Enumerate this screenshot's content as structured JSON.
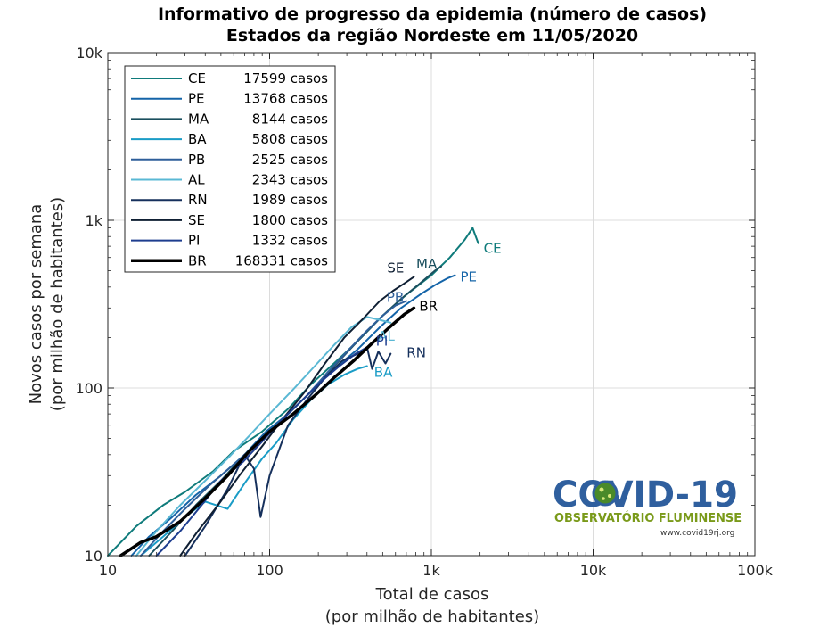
{
  "chart_data": {
    "type": "line",
    "title": [
      "Informativo de progresso da epidemia (número de casos)",
      "Estados da região Nordeste em 11/05/2020"
    ],
    "xlabel": [
      "Total de casos",
      "(por milhão de habitantes)"
    ],
    "ylabel": [
      "Novos casos por semana",
      "(por milhão de habitantes)"
    ],
    "xscale": "log",
    "yscale": "log",
    "xlim": [
      10,
      100000
    ],
    "ylim": [
      10,
      10000
    ],
    "xticks": [
      10,
      100,
      1000,
      10000,
      100000
    ],
    "xtick_labels": [
      "10",
      "100",
      "1k",
      "10k",
      "100k"
    ],
    "yticks": [
      10,
      100,
      1000,
      10000
    ],
    "ytick_labels": [
      "10",
      "100",
      "1k",
      "10k"
    ],
    "grid": true,
    "legend_position": "top-left",
    "series": [
      {
        "name": "CE",
        "cases": "17599 casos",
        "color": "#0f7b7b",
        "width": 2,
        "end_label_color": "#0f7b7b",
        "x": [
          10,
          15,
          22,
          30,
          45,
          60,
          90,
          130,
          180,
          250,
          350,
          500,
          700,
          1000,
          1300,
          1600,
          1800,
          1950
        ],
        "y": [
          10,
          15,
          20,
          24,
          32,
          42,
          55,
          75,
          105,
          140,
          190,
          270,
          360,
          470,
          600,
          760,
          900,
          730
        ]
      },
      {
        "name": "PE",
        "cases": "13768 casos",
        "color": "#1464a8",
        "width": 2,
        "end_label_color": "#1464a8",
        "x": [
          14,
          18,
          25,
          35,
          50,
          70,
          95,
          130,
          180,
          250,
          350,
          480,
          650,
          850,
          1050,
          1250,
          1400
        ],
        "y": [
          10,
          13,
          17,
          23,
          30,
          40,
          55,
          70,
          95,
          130,
          170,
          230,
          300,
          360,
          410,
          450,
          470
        ]
      },
      {
        "name": "MA",
        "cases": "8144 casos",
        "color": "#1a4f5e",
        "width": 2,
        "end_label_color": "#1a4f5e",
        "x": [
          18,
          25,
          35,
          50,
          70,
          100,
          140,
          190,
          260,
          350,
          480,
          650,
          850,
          1050,
          1150
        ],
        "y": [
          10,
          14,
          20,
          28,
          40,
          55,
          75,
          100,
          140,
          190,
          260,
          340,
          420,
          500,
          530
        ]
      },
      {
        "name": "BA",
        "cases": "5808 casos",
        "color": "#1a9cc6",
        "width": 2,
        "end_label_color": "#1a9cc6",
        "x": [
          16,
          22,
          30,
          40,
          55,
          70,
          90,
          110,
          140,
          180,
          230,
          290,
          350,
          400
        ],
        "y": [
          10,
          13,
          17,
          21,
          19,
          27,
          38,
          47,
          65,
          85,
          105,
          120,
          130,
          135
        ]
      },
      {
        "name": "PB",
        "cases": "2525 casos",
        "color": "#2e5f9a",
        "width": 2,
        "end_label_color": "#2e5f9a",
        "x": [
          16,
          22,
          30,
          42,
          60,
          85,
          120,
          170,
          230,
          310,
          400,
          500,
          600,
          700
        ],
        "y": [
          10,
          14,
          19,
          26,
          35,
          47,
          65,
          90,
          125,
          170,
          220,
          270,
          310,
          330
        ]
      },
      {
        "name": "AL",
        "cases": "2343 casos",
        "color": "#5ab8d4",
        "width": 2,
        "end_label_color": "#5ab8d4",
        "x": [
          15,
          20,
          28,
          40,
          55,
          75,
          100,
          140,
          190,
          250,
          320,
          400,
          480,
          560
        ],
        "y": [
          10,
          14,
          20,
          28,
          38,
          52,
          70,
          98,
          135,
          180,
          230,
          265,
          255,
          245
        ]
      },
      {
        "name": "RN",
        "cases": "1989 casos",
        "color": "#16305c",
        "width": 2,
        "end_label_color": "#16305c",
        "x": [
          30,
          40,
          55,
          70,
          80,
          88,
          100,
          130,
          170,
          220,
          280,
          350,
          400,
          430,
          470,
          520,
          560
        ],
        "y": [
          10,
          15,
          25,
          40,
          33,
          17,
          30,
          60,
          85,
          115,
          145,
          160,
          175,
          130,
          165,
          140,
          160
        ]
      },
      {
        "name": "SE",
        "cases": "1800 casos",
        "color": "#0f1f33",
        "width": 2,
        "end_label_color": "#0f1f33",
        "x": [
          28,
          36,
          48,
          65,
          90,
          120,
          165,
          220,
          290,
          380,
          480,
          580,
          680,
          780
        ],
        "y": [
          10,
          14,
          20,
          30,
          45,
          65,
          95,
          140,
          200,
          260,
          330,
          380,
          420,
          460
        ]
      },
      {
        "name": "PI",
        "cases": "1332 casos",
        "color": "#1e3d8f",
        "width": 2,
        "end_label_color": "#1e3d8f",
        "x": [
          20,
          28,
          38,
          50,
          68,
          90,
          120,
          160,
          210,
          270,
          340,
          400
        ],
        "y": [
          10,
          14,
          20,
          28,
          36,
          48,
          65,
          85,
          110,
          135,
          160,
          175
        ]
      },
      {
        "name": "BR",
        "cases": "168331 casos",
        "color": "#000000",
        "width": 3.5,
        "end_label_color": "#000000",
        "x": [
          12,
          16,
          20,
          28,
          40,
          55,
          75,
          100,
          140,
          190,
          250,
          330,
          430,
          550,
          680,
          780
        ],
        "y": [
          10,
          12,
          13,
          16,
          22,
          30,
          42,
          55,
          70,
          90,
          115,
          145,
          185,
          230,
          275,
          300
        ]
      }
    ],
    "end_labels": [
      {
        "name": "CE",
        "text": "CE"
      },
      {
        "name": "PE",
        "text": "PE"
      },
      {
        "name": "MA",
        "text": "MA"
      },
      {
        "name": "SE",
        "text": "SE"
      },
      {
        "name": "PB",
        "text": "PB"
      },
      {
        "name": "BR",
        "text": "BR"
      },
      {
        "name": "AL",
        "text": "AL"
      },
      {
        "name": "PI",
        "text": "PI"
      },
      {
        "name": "RN",
        "text": "RN"
      },
      {
        "name": "BA",
        "text": "BA"
      }
    ]
  },
  "logo": {
    "main": "COVID-19",
    "sub": "OBSERVATÓRIO FLUMINENSE",
    "url": "www.covid19rj.org"
  }
}
